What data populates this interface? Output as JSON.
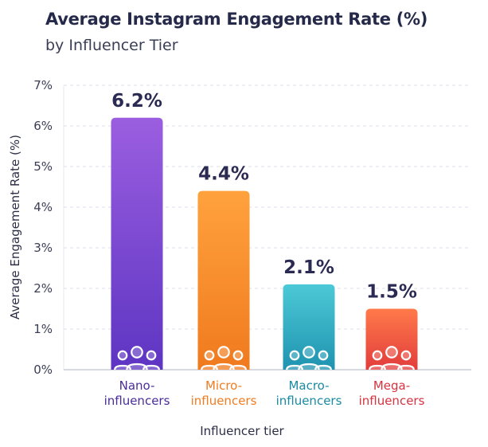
{
  "chart_data": {
    "type": "bar",
    "title": "Average Instagram Engagement Rate (%)",
    "subtitle": "by Influencer Tier",
    "xlabel": "Influencer tier",
    "ylabel": "Average Engagement Rate (%)",
    "ylim": [
      0,
      7
    ],
    "yticks": [
      "0%",
      "1%",
      "2%",
      "3%",
      "4%",
      "5%",
      "6%",
      "7%"
    ],
    "grid": true,
    "categories": [
      [
        "Nano-",
        "influencers"
      ],
      [
        "Micro-",
        "influencers"
      ],
      [
        "Macro-",
        "influencers"
      ],
      [
        "Mega-",
        "influencers"
      ]
    ],
    "values": [
      6.2,
      4.4,
      2.1,
      1.5
    ],
    "data_labels": [
      "6.2%",
      "4.4%",
      "2.1%",
      "1.5%"
    ],
    "colors": [
      {
        "top": "#9b5ee0",
        "bottom": "#5d35c2",
        "label": "#4a2c9a"
      },
      {
        "top": "#ffa23d",
        "bottom": "#f07a1e",
        "label": "#f07c22"
      },
      {
        "top": "#4cc9d6",
        "bottom": "#1f93b0",
        "label": "#1b8aa3"
      },
      {
        "top": "#ff7a4a",
        "bottom": "#e23c3c",
        "label": "#d63340"
      }
    ],
    "icon": "people-group-icon"
  }
}
